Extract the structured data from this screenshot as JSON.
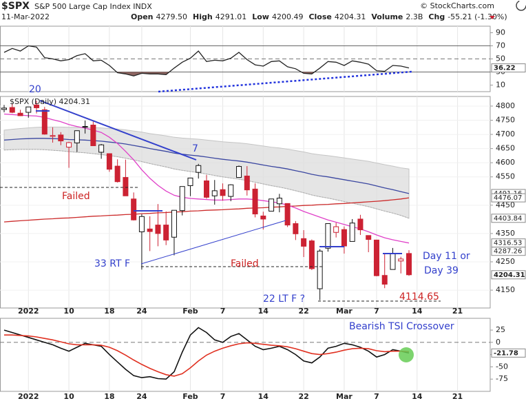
{
  "header": {
    "title": "$SPX",
    "name": "S&P 500 Large Cap Index INDX",
    "copyright": "© StockCharts.com",
    "date": "11-Mar-2022",
    "quote": [
      {
        "label": "Open",
        "value": "4279.50"
      },
      {
        "label": "High",
        "value": "4291.01"
      },
      {
        "label": "Low",
        "value": "4200.49"
      },
      {
        "label": "Close",
        "value": "4204.31"
      },
      {
        "label": "Volume",
        "value": "2.3B"
      },
      {
        "label": "Chg",
        "value": "-55.21 (-1.30%)"
      }
    ]
  },
  "chart_data": [
    {
      "type": "line",
      "color": "#222222",
      "fill_color": "#8c6460",
      "values": [
        60,
        66,
        62,
        70,
        68,
        52,
        50,
        47,
        49,
        55,
        58,
        47,
        48,
        40,
        29,
        27,
        24,
        28,
        27,
        27,
        26,
        36,
        45,
        51,
        62,
        46,
        48,
        47,
        51,
        60,
        49,
        41,
        39,
        46,
        47,
        38,
        35,
        28,
        27,
        36,
        46,
        45,
        40,
        47,
        45,
        42,
        32,
        31,
        40,
        39,
        36.22,
        null,
        null,
        null,
        null,
        null,
        null,
        null,
        null,
        null
      ],
      "ylim": [
        0,
        100
      ],
      "yticks": [
        90,
        70,
        50,
        30,
        10
      ],
      "thresholds": [
        70,
        30
      ],
      "midline": 50,
      "flags": [
        36.22
      ]
    },
    {
      "type": "candlestick",
      "legend": "$SPX (Daily) 4204.31",
      "categories": [
        null,
        null,
        null,
        "2022",
        null,
        null,
        null,
        null,
        "10",
        null,
        null,
        null,
        null,
        "18",
        null,
        null,
        null,
        "24",
        null,
        null,
        null,
        null,
        null,
        "Feb",
        null,
        null,
        null,
        "7",
        null,
        null,
        null,
        null,
        "14",
        null,
        null,
        null,
        null,
        "22",
        null,
        null,
        null,
        null,
        "Mar",
        null,
        null,
        null,
        "7",
        null,
        null,
        null,
        null,
        "14",
        null,
        null,
        null,
        null,
        "21",
        null,
        null,
        null
      ],
      "open": [
        4788,
        4795,
        4775,
        4778,
        4804,
        4787,
        4693,
        4698,
        4655,
        4670,
        4728,
        4733,
        4637,
        4632,
        4588,
        4548,
        4472,
        4356,
        4366,
        4380,
        4380,
        4337,
        4431,
        4519,
        4566,
        4536,
        4483,
        4505,
        4481,
        4548,
        4553,
        4507,
        4412,
        4429,
        4455,
        4456,
        4385,
        4332,
        4324,
        4155,
        4298,
        4354,
        4364,
        4322,
        4401,
        4343,
        4327,
        4202,
        4223,
        4253,
        4279.5,
        null,
        null,
        null,
        null,
        null,
        null,
        null,
        null,
        null
      ],
      "high": [
        4804,
        4808,
        4787,
        4797,
        4819,
        4797,
        4725,
        4708,
        4674,
        4714,
        4749,
        4745,
        4666,
        4632,
        4612,
        4611,
        4495,
        4418,
        4411,
        4454,
        4428,
        4432,
        4516,
        4547,
        4596,
        4557,
        4539,
        4527,
        4524,
        4590,
        4588,
        4527,
        4427,
        4472,
        4490,
        4456,
        4394,
        4362,
        4329,
        4295,
        4385,
        4388,
        4375,
        4401,
        4416,
        4343,
        4327,
        4277,
        4299,
        4268,
        4291.01,
        null,
        null,
        null,
        null,
        null,
        null,
        null,
        null,
        null
      ],
      "low": [
        4778,
        4775,
        4765,
        4759,
        4774,
        4699,
        4671,
        4662,
        4582,
        4638,
        4703,
        4660,
        4614,
        4568,
        4530,
        4483,
        4396,
        4222.62,
        4288,
        4305,
        4309,
        4273,
        4414,
        4482,
        4544,
        4473,
        4452,
        4466,
        4464,
        4548,
        4484,
        4407,
        4364,
        4429,
        4425,
        4373,
        4327,
        4267,
        4221,
        4114.65,
        4286,
        4336,
        4279,
        4322,
        4345,
        4284,
        4199,
        4157,
        4223,
        4209,
        4200.49,
        null,
        null,
        null,
        null,
        null,
        null,
        null,
        null,
        null
      ],
      "close": [
        4793,
        4778,
        4766,
        4797,
        4794,
        4701,
        4696,
        4677,
        4671,
        4713,
        4726,
        4660,
        4663,
        4577,
        4533,
        4483,
        4398,
        4410,
        4357,
        4350,
        4327,
        4432,
        4516,
        4546,
        4590,
        4478,
        4501,
        4484,
        4522,
        4587,
        4504,
        4419,
        4401,
        4472,
        4475,
        4380,
        4349,
        4305,
        4226,
        4288,
        4385,
        4374,
        4306,
        4387,
        4363,
        4329,
        4201,
        4171,
        4278,
        4260,
        4204.31,
        null,
        null,
        null,
        null,
        null,
        null,
        null,
        null,
        null
      ],
      "up_color": "#111111",
      "down_color": "#cc2233",
      "band": {
        "color": "#dcdcdc",
        "upper": [
          4715,
          4718,
          4721,
          4723,
          4725,
          4726,
          4726,
          4726,
          4725,
          4725,
          4725,
          4724,
          4723,
          4721,
          4719,
          4716,
          4712,
          4708,
          4703,
          4699,
          4695,
          4690,
          4687,
          4685,
          4683,
          4680,
          4677,
          4674,
          4672,
          4670,
          4667,
          4663,
          4659,
          4655,
          4652,
          4648,
          4643,
          4638,
          4632,
          4628,
          4625,
          4621,
          4617,
          4613,
          4609,
          4605,
          4599,
          4593,
          4588,
          4582,
          4578,
          null,
          null,
          null,
          null,
          null,
          null,
          null,
          null,
          null
        ],
        "lower": [
          4645,
          4646,
          4647,
          4647,
          4647,
          4646,
          4644,
          4642,
          4639,
          4637,
          4635,
          4632,
          4629,
          4625,
          4621,
          4616,
          4610,
          4604,
          4597,
          4591,
          4585,
          4578,
          4573,
          4569,
          4565,
          4560,
          4555,
          4550,
          4546,
          4542,
          4537,
          4531,
          4525,
          4519,
          4514,
          4508,
          4501,
          4494,
          4486,
          4480,
          4475,
          4469,
          4463,
          4457,
          4451,
          4445,
          4437,
          4429,
          4422,
          4414,
          4403.84,
          null,
          null,
          null,
          null,
          null,
          null,
          null,
          null,
          null
        ]
      },
      "overlays": [
        {
          "color": "#3a46a0",
          "values": [
            4680,
            4682,
            4684,
            4685,
            4686,
            4686,
            4685,
            4684,
            4682,
            4681,
            4680,
            4678,
            4676,
            4673,
            4670,
            4666,
            4661,
            4656,
            4650,
            4645,
            4640,
            4634,
            4630,
            4627,
            4624,
            4620,
            4616,
            4612,
            4609,
            4606,
            4602,
            4597,
            4592,
            4587,
            4583,
            4578,
            4572,
            4566,
            4559,
            4554,
            4550,
            4545,
            4540,
            4535,
            4530,
            4525,
            4518,
            4511,
            4505,
            4498,
            4491.16,
            null,
            null,
            null,
            null,
            null,
            null,
            null,
            null,
            null
          ]
        },
        {
          "color": "#cc2a2a",
          "values": [
            4391,
            4393,
            4395,
            4397,
            4399,
            4401,
            4402,
            4404,
            4405,
            4407,
            4409,
            4411,
            4412,
            4414,
            4415,
            4417,
            4418,
            4420,
            4421,
            4423,
            4424,
            4426,
            4427,
            4429,
            4430,
            4432,
            4433,
            4434,
            4436,
            4437,
            4439,
            4440,
            4441,
            4443,
            4444,
            4446,
            4447,
            4449,
            4450,
            4452,
            4453,
            4455,
            4456,
            4458,
            4460,
            4462,
            4464,
            4466,
            4469,
            4472,
            4476.07,
            null,
            null,
            null,
            null,
            null,
            null,
            null,
            null,
            null
          ]
        },
        {
          "color": "#e040c8",
          "values": [
            4772,
            4770,
            4768,
            4766,
            4765,
            4760,
            4752,
            4745,
            4735,
            4728,
            4722,
            4715,
            4707,
            4690,
            4668,
            4640,
            4610,
            4575,
            4545,
            4520,
            4500,
            4485,
            4478,
            4474,
            4472,
            4470,
            4468,
            4468,
            4470,
            4472,
            4472,
            4470,
            4466,
            4462,
            4458,
            4450,
            4440,
            4428,
            4418,
            4408,
            4398,
            4390,
            4382,
            4374,
            4366,
            4356,
            4345,
            4335,
            4328,
            4322,
            4316.53,
            null,
            null,
            null,
            null,
            null,
            null,
            null,
            null,
            null
          ]
        }
      ],
      "ylim": [
        4087,
        4834
      ],
      "yticks": [
        4800,
        4750,
        4700,
        4650,
        4600,
        4550,
        4450,
        4350,
        4250,
        4150
      ],
      "grid": true,
      "flags": [
        4491.16,
        4476.07,
        4403.84,
        4316.53,
        4287.26,
        4204.31
      ],
      "annotations": [
        {
          "text": "20",
          "color": "#3340cc"
        },
        {
          "text": "7",
          "color": "#3340cc"
        },
        {
          "text": "Failed",
          "color": "#cc2222"
        },
        {
          "text": "33 RT F",
          "color": "#3340cc"
        },
        {
          "text": "Failed",
          "color": "#cc2222"
        },
        {
          "text": "22 LT F ?",
          "color": "#3340cc"
        },
        {
          "text": "4114.65",
          "color": "#cc2222"
        },
        {
          "text": "Day 11 or",
          "color": "#3340cc"
        },
        {
          "text": "Day 39",
          "color": "#3340cc"
        },
        {
          "text": "Bearish TSI Crossover",
          "color": "#3340cc"
        }
      ]
    },
    {
      "type": "line",
      "categories": [
        null,
        null,
        null,
        "2022",
        null,
        null,
        null,
        null,
        "10",
        null,
        null,
        null,
        null,
        "18",
        null,
        null,
        null,
        "24",
        null,
        null,
        null,
        null,
        null,
        "Feb",
        null,
        null,
        null,
        "7",
        null,
        null,
        null,
        null,
        "14",
        null,
        null,
        null,
        null,
        "22",
        null,
        null,
        null,
        null,
        "Mar",
        null,
        null,
        null,
        "7",
        null,
        null,
        null,
        null,
        "14",
        null,
        null,
        null,
        null,
        "21",
        null,
        null,
        null
      ],
      "series": [
        {
          "color": "#111111",
          "values": [
            25,
            20,
            15,
            10,
            5,
            0,
            -5,
            -12,
            -18,
            -10,
            -2,
            -5,
            -8,
            -25,
            -40,
            -55,
            -68,
            -72,
            -70,
            -74,
            -75,
            -60,
            -20,
            15,
            30,
            20,
            5,
            0,
            12,
            18,
            5,
            -8,
            -15,
            -12,
            -8,
            -15,
            -25,
            -38,
            -42,
            -30,
            -12,
            -8,
            -2,
            -5,
            -10,
            -18,
            -30,
            -25,
            -15,
            -18,
            -21.78,
            null,
            null,
            null,
            null,
            null,
            null,
            null,
            null,
            null
          ]
        },
        {
          "color": "#e03020",
          "values": [
            15,
            15,
            14,
            13,
            11,
            8,
            5,
            1,
            -3,
            -5,
            -5,
            -5,
            -6,
            -10,
            -17,
            -26,
            -36,
            -45,
            -53,
            -60,
            -66,
            -69,
            -64,
            -52,
            -38,
            -26,
            -18,
            -12,
            -7,
            -3,
            -1,
            -2,
            -4,
            -6,
            -7,
            -9,
            -13,
            -18,
            -23,
            -25,
            -23,
            -20,
            -16,
            -13,
            -12,
            -13,
            -17,
            -19,
            -18,
            -18,
            -19,
            null,
            null,
            null,
            null,
            null,
            null,
            null,
            null,
            null
          ]
        }
      ],
      "ylim": [
        -100,
        49
      ],
      "yticks": [
        25,
        0,
        -25,
        -50,
        -75
      ],
      "midline": 0,
      "flags": [
        -21.78
      ]
    }
  ]
}
